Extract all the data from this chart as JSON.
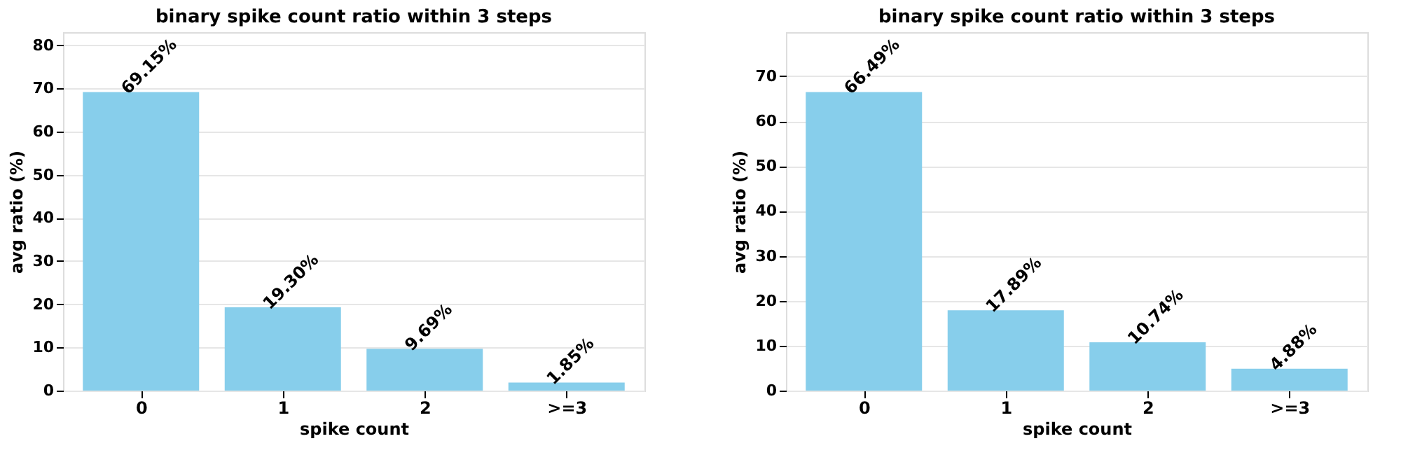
{
  "chart_data": [
    {
      "type": "bar",
      "title": "binary spike count ratio within 3 steps",
      "xlabel": "spike count",
      "ylabel": "avg ratio (%)",
      "categories": [
        "0",
        "1",
        "2",
        ">=3"
      ],
      "values": [
        69.15,
        19.3,
        9.69,
        1.85
      ],
      "value_labels": [
        "69.15%",
        "19.30%",
        "9.69%",
        "1.85%"
      ],
      "color": "#87ceeb",
      "ylim": [
        0,
        83
      ],
      "yticks": [
        0,
        10,
        20,
        30,
        40,
        50,
        60,
        70,
        80
      ],
      "grid": "y"
    },
    {
      "type": "bar",
      "title": "binary spike count ratio within 3 steps",
      "xlabel": "spike count",
      "ylabel": "avg ratio (%)",
      "categories": [
        "0",
        "1",
        "2",
        ">=3"
      ],
      "values": [
        66.49,
        17.89,
        10.74,
        4.88
      ],
      "value_labels": [
        "66.49%",
        "17.89%",
        "10.74%",
        "4.88%"
      ],
      "color": "#87ceeb",
      "ylim": [
        0,
        79.8
      ],
      "yticks": [
        0,
        10,
        20,
        30,
        40,
        50,
        60,
        70
      ],
      "grid": "y"
    }
  ]
}
